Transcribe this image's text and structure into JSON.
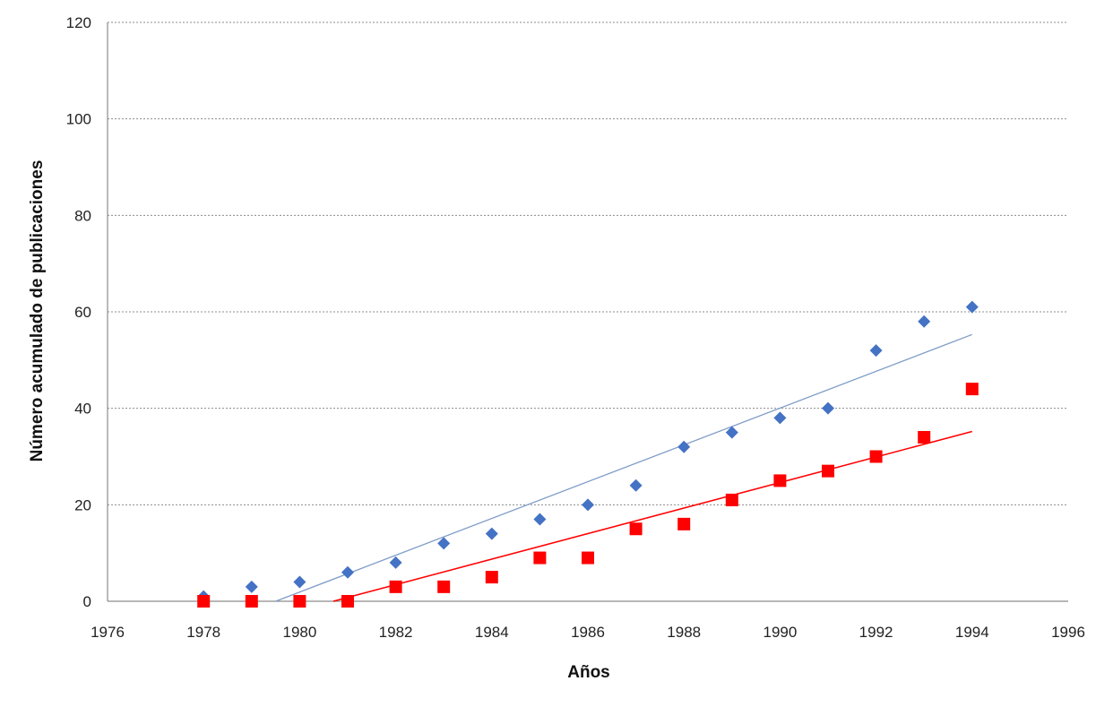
{
  "chart_data": {
    "type": "scatter",
    "title": "",
    "xlabel": "Años",
    "ylabel": "Número acumulado de publicaciones",
    "xlim": [
      1976,
      1996
    ],
    "ylim": [
      0,
      120
    ],
    "xticks": [
      1976,
      1978,
      1980,
      1982,
      1984,
      1986,
      1988,
      1990,
      1992,
      1994,
      1996
    ],
    "yticks": [
      0,
      20,
      40,
      60,
      80,
      100,
      120
    ],
    "grid": "horizontal",
    "legend": "none",
    "series": [
      {
        "marker": "diamond",
        "color": "#4472C4",
        "x": [
          1978,
          1979,
          1980,
          1981,
          1982,
          1983,
          1984,
          1985,
          1986,
          1987,
          1988,
          1989,
          1990,
          1991,
          1992,
          1993,
          1994
        ],
        "y": [
          1,
          3,
          4,
          6,
          8,
          12,
          14,
          17,
          20,
          24,
          32,
          35,
          38,
          40,
          52,
          58,
          61
        ],
        "trendline": {
          "color": "#7F9CC7",
          "x": [
            1979.5,
            1994
          ],
          "y": [
            0,
            55.3
          ]
        }
      },
      {
        "marker": "square",
        "color": "#FF0000",
        "x": [
          1978,
          1979,
          1980,
          1981,
          1982,
          1983,
          1984,
          1985,
          1986,
          1987,
          1988,
          1989,
          1990,
          1991,
          1992,
          1993,
          1994
        ],
        "y": [
          0,
          0,
          0,
          0,
          3,
          3,
          5,
          9,
          9,
          15,
          16,
          21,
          25,
          27,
          30,
          34,
          44
        ],
        "trendline": {
          "color": "#FF0000",
          "x": [
            1980.7,
            1994
          ],
          "y": [
            0,
            35.2
          ]
        }
      }
    ]
  }
}
